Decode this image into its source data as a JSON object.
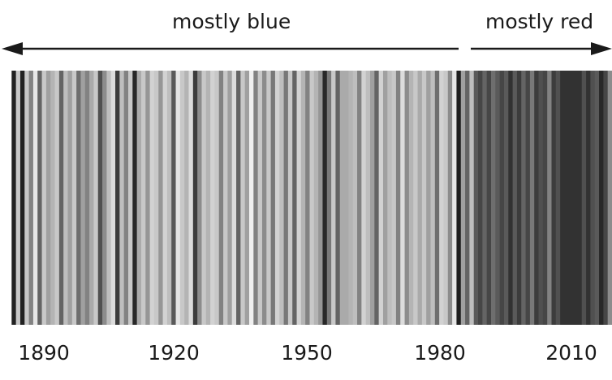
{
  "chart_data": {
    "type": "bar",
    "chart_style": "warming stripes (grayscale)",
    "x_start_year": 1880,
    "x_end_year": 2019,
    "tick_labels": [
      "1890",
      "1920",
      "1950",
      "1980",
      "2010"
    ],
    "annotations": {
      "left": "mostly blue",
      "right": "mostly red"
    },
    "gray_levels": [
      255,
      34,
      200,
      34,
      200,
      130,
      230,
      100,
      200,
      160,
      180,
      200,
      100,
      190,
      160,
      200,
      110,
      160,
      130,
      170,
      200,
      80,
      140,
      190,
      220,
      60,
      190,
      130,
      200,
      40,
      170,
      200,
      150,
      210,
      200,
      150,
      210,
      190,
      90,
      230,
      200,
      180,
      220,
      60,
      140,
      200,
      180,
      210,
      200,
      130,
      200,
      160,
      220,
      100,
      200,
      160,
      240,
      130,
      200,
      140,
      200,
      120,
      210,
      190,
      120,
      200,
      100,
      210,
      180,
      130,
      200,
      180,
      150,
      40,
      120,
      200,
      100,
      170,
      170,
      180,
      190,
      130,
      210,
      190,
      160,
      100,
      210,
      160,
      190,
      200,
      130,
      220,
      140,
      180,
      200,
      170,
      200,
      160,
      190,
      110,
      210,
      200,
      140,
      230,
      30,
      160,
      100,
      190,
      90,
      70,
      100,
      70,
      110,
      90,
      70,
      90,
      50,
      90,
      60,
      100,
      70,
      120,
      60,
      80,
      70,
      130,
      60,
      80,
      50,
      50,
      50,
      50,
      50,
      80,
      50,
      80,
      90,
      40,
      70,
      140
    ],
    "colors": {
      "background": "#ffffff",
      "text": "#1a1a1a",
      "arrow": "#1a1a1a"
    }
  }
}
